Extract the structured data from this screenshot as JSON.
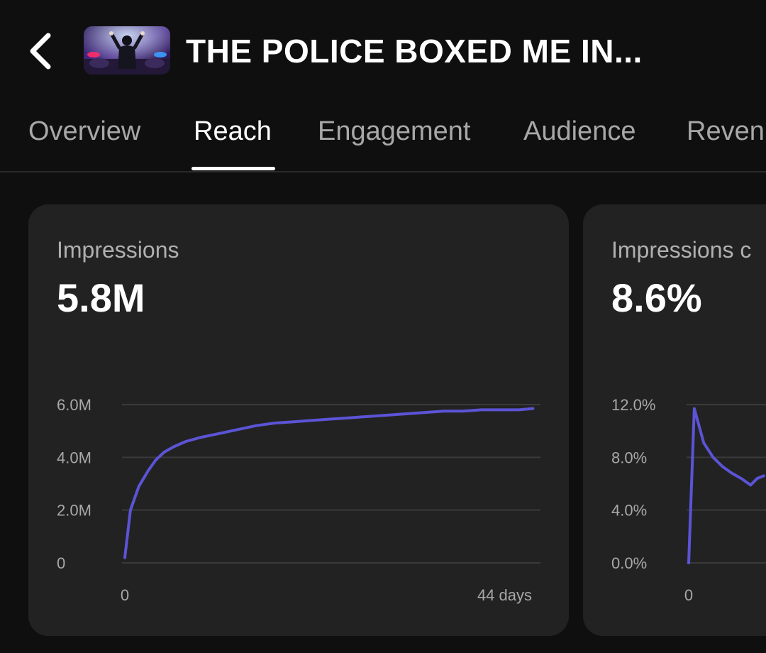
{
  "header": {
    "back_icon": "chevron-left-icon",
    "video_title": "THE POLICE BOXED ME IN..."
  },
  "tabs": [
    {
      "label": "Overview",
      "active": false
    },
    {
      "label": "Reach",
      "active": true
    },
    {
      "label": "Engagement",
      "active": false
    },
    {
      "label": "Audience",
      "active": false
    },
    {
      "label": "Reven",
      "active": false
    }
  ],
  "colors": {
    "accent_line": "#5b54d6",
    "background": "#0f0f0f",
    "card": "#222222"
  },
  "cards": [
    {
      "label": "Impressions",
      "value": "5.8M",
      "chart_data": {
        "type": "line",
        "title": "Impressions",
        "xlabel": "",
        "ylabel": "",
        "x_tick_labels": [
          "0",
          "44 days"
        ],
        "xlim": [
          0,
          44
        ],
        "y_ticks": [
          0,
          2.0,
          4.0,
          6.0
        ],
        "y_tick_labels": [
          "0",
          "2.0M",
          "4.0M",
          "6.0M"
        ],
        "ylim": [
          0,
          6.0
        ],
        "unit": "M",
        "series": [
          {
            "name": "Impressions",
            "x": [
              0,
              0.6,
              1.5,
              2.5,
              3.3,
              4.2,
              5.2,
              6.5,
              8,
              10,
              12,
              14,
              16,
              18,
              20,
              22,
              24,
              26,
              28,
              30,
              32,
              34,
              36,
              38,
              40,
              42,
              43.5
            ],
            "values": [
              0.2,
              2.0,
              2.9,
              3.5,
              3.9,
              4.2,
              4.4,
              4.6,
              4.75,
              4.9,
              5.05,
              5.2,
              5.3,
              5.35,
              5.4,
              5.45,
              5.5,
              5.55,
              5.6,
              5.65,
              5.7,
              5.75,
              5.75,
              5.8,
              5.8,
              5.8,
              5.85
            ]
          }
        ]
      }
    },
    {
      "label": "Impressions c",
      "value": "8.6%",
      "chart_data": {
        "type": "line",
        "title": "Impressions c",
        "x_tick_labels": [
          "0"
        ],
        "xlim": [
          0,
          44
        ],
        "y_ticks": [
          0,
          4.0,
          8.0,
          12.0
        ],
        "y_tick_labels": [
          "0.0%",
          "4.0%",
          "8.0%",
          "12.0%"
        ],
        "ylim": [
          0,
          12.0
        ],
        "unit": "%",
        "series": [
          {
            "name": "Impressions click-through rate",
            "x": [
              0,
              0.6,
              1.6,
              2.6,
              3.6,
              4.6,
              5.6,
              6.6,
              7.3,
              8.0
            ],
            "values": [
              0.0,
              11.7,
              9.1,
              8.0,
              7.3,
              6.8,
              6.4,
              5.9,
              6.4,
              6.6
            ]
          }
        ]
      }
    }
  ]
}
